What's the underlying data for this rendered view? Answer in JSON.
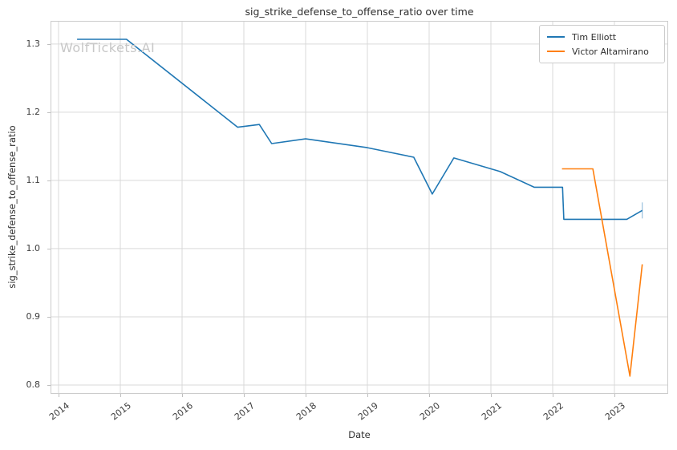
{
  "title": "sig_strike_defense_to_offense_ratio over time",
  "watermark": "WolfTickets.AI",
  "axes": {
    "xlabel": "Date",
    "ylabel": "sig_strike_defense_to_offense_ratio"
  },
  "legend": {
    "items": [
      {
        "label": "Tim Elliott",
        "color": "#1f77b4"
      },
      {
        "label": "Victor Altamirano",
        "color": "#ff7f0e"
      }
    ],
    "position": "upper right"
  },
  "style": {
    "grid_color": "#d9d9d9",
    "spine_color": "#cccccc",
    "tick_color": "#bfbfbf",
    "background": "#ffffff"
  },
  "chart_data": {
    "type": "line",
    "title": "sig_strike_defense_to_offense_ratio over time",
    "xlabel": "Date",
    "ylabel": "sig_strike_defense_to_offense_ratio",
    "grid": true,
    "legend_position": "upper right",
    "xlim": [
      2013.87,
      2023.87
    ],
    "ylim": [
      0.787,
      1.334
    ],
    "x_ticks": [
      2014,
      2015,
      2016,
      2017,
      2018,
      2019,
      2020,
      2021,
      2022,
      2023
    ],
    "y_ticks": [
      0.8,
      0.9,
      1.0,
      1.1,
      1.2,
      1.3
    ],
    "series": [
      {
        "name": "Tim Elliott",
        "color": "#1f77b4",
        "end_tick": true,
        "points": [
          [
            2014.3,
            1.307
          ],
          [
            2015.1,
            1.307
          ],
          [
            2016.9,
            1.178
          ],
          [
            2017.25,
            1.182
          ],
          [
            2017.45,
            1.154
          ],
          [
            2018.0,
            1.161
          ],
          [
            2019.0,
            1.148
          ],
          [
            2019.75,
            1.134
          ],
          [
            2020.05,
            1.08
          ],
          [
            2020.4,
            1.133
          ],
          [
            2021.15,
            1.113
          ],
          [
            2021.7,
            1.09
          ],
          [
            2022.16,
            1.09
          ],
          [
            2022.18,
            1.043
          ],
          [
            2023.2,
            1.043
          ],
          [
            2023.45,
            1.056
          ]
        ]
      },
      {
        "name": "Victor Altamirano",
        "color": "#ff7f0e",
        "end_tick": false,
        "points": [
          [
            2022.15,
            1.117
          ],
          [
            2022.65,
            1.117
          ],
          [
            2023.25,
            0.813
          ],
          [
            2023.45,
            0.977
          ]
        ]
      }
    ]
  }
}
